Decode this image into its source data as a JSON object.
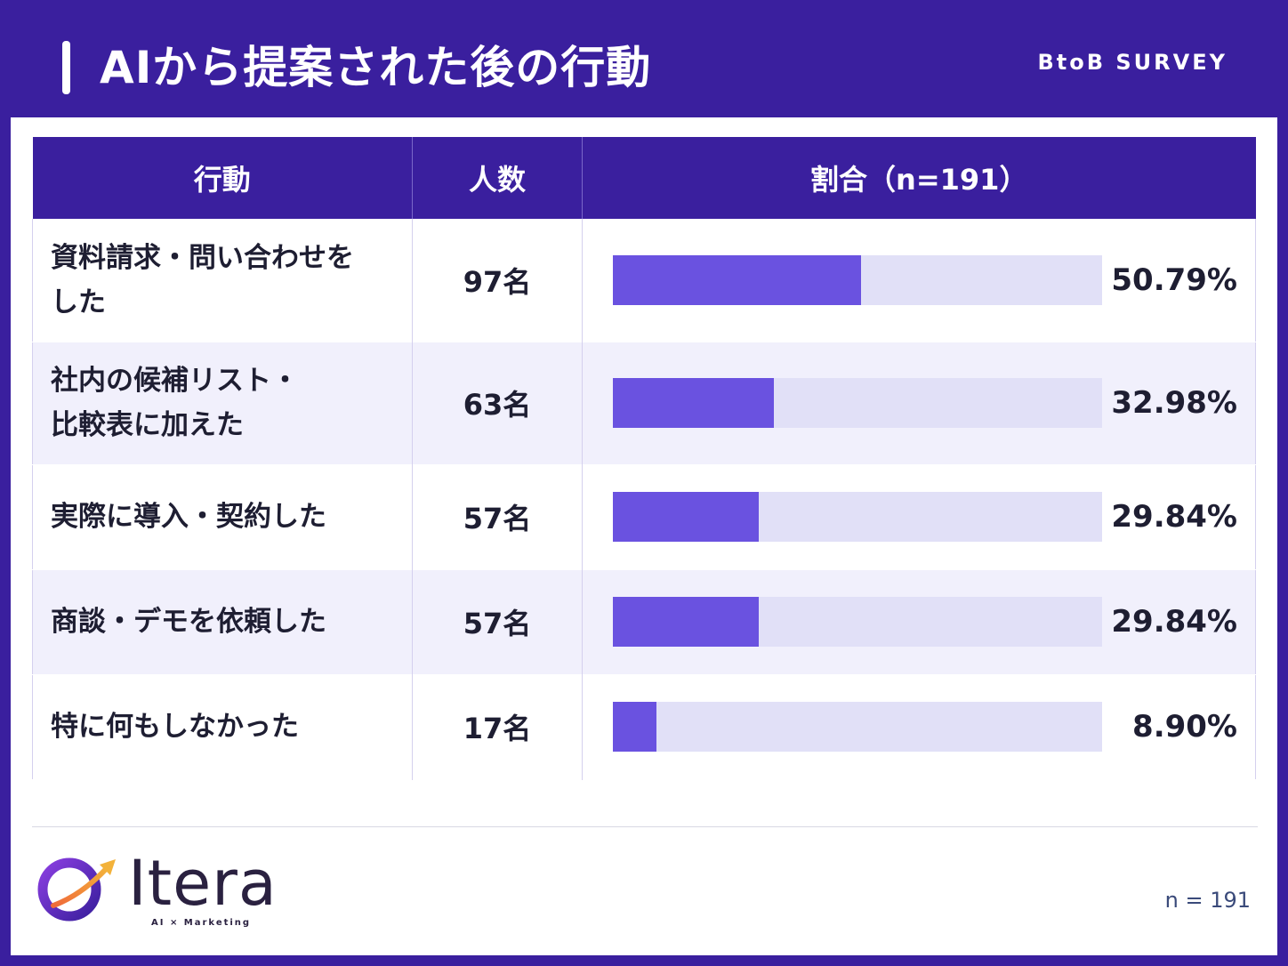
{
  "header": {
    "title": "AIから提案された後の行動",
    "tag": "BtoB SURVEY"
  },
  "table": {
    "headers": [
      "行動",
      "人数",
      "割合（n=191）"
    ]
  },
  "chart_data": {
    "type": "bar",
    "title": "AIから提案された後の行動",
    "categories": [
      "資料請求・問い合わせをした",
      "社内の候補リスト・比較表に加えた",
      "実際に導入・契約した",
      "商談・デモを依頼した",
      "特に何もしなかった"
    ],
    "category_lines": [
      [
        "資料請求・問い合わせを",
        "した"
      ],
      [
        "社内の候補リスト・",
        "比較表に加えた"
      ],
      [
        "実際に導入・契約した"
      ],
      [
        "商談・デモを依頼した"
      ],
      [
        "特に何もしなかった"
      ]
    ],
    "counts": [
      "97名",
      "63名",
      "57名",
      "57名",
      "17名"
    ],
    "values": [
      50.79,
      32.98,
      29.84,
      29.84,
      8.9
    ],
    "value_labels": [
      "50.79%",
      "32.98%",
      "29.84%",
      "29.84%",
      "8.90%"
    ],
    "xlim": [
      0,
      100
    ],
    "orientation": "horizontal",
    "colors": {
      "bar": "#6a52e0",
      "track": "#e1e0f7",
      "header": "#3a1f9e"
    }
  },
  "footer": {
    "logo_text": "Itera",
    "logo_tagline": "AI × Marketing",
    "n_note": "n = 191"
  }
}
